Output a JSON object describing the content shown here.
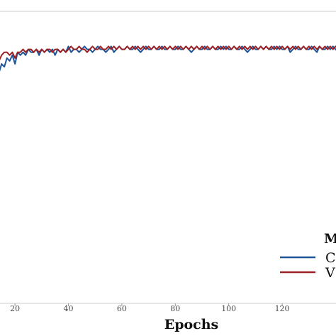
{
  "chart_data": {
    "type": "line",
    "xlabel": "Epochs",
    "ylabel": "",
    "xlim": [
      12,
      142
    ],
    "ylim": [
      0,
      1
    ],
    "grid": false,
    "x_ticks": [
      20,
      40,
      60,
      80,
      100,
      120
    ],
    "x": [
      12,
      13,
      14,
      15,
      16,
      17,
      18,
      19,
      20,
      21,
      22,
      23,
      24,
      25,
      26,
      27,
      28,
      29,
      30,
      31,
      32,
      33,
      34,
      35,
      36,
      37,
      38,
      39,
      40,
      41,
      42,
      43,
      44,
      45,
      46,
      47,
      48,
      49,
      50,
      51,
      52,
      53,
      54,
      55,
      56,
      57,
      58,
      59,
      60,
      61,
      62,
      63,
      64,
      65,
      66,
      67,
      68,
      69,
      70,
      71,
      72,
      73,
      74,
      75,
      76,
      77,
      78,
      79,
      80,
      81,
      82,
      83,
      84,
      85,
      86,
      87,
      88,
      89,
      90,
      91,
      92,
      93,
      94,
      95,
      96,
      97,
      98,
      99,
      100,
      101,
      102,
      103,
      104,
      105,
      106,
      107,
      108,
      109,
      110,
      111,
      112,
      113,
      114,
      115,
      116,
      117,
      118,
      119,
      120,
      121,
      122,
      123,
      124,
      125,
      126,
      127,
      128,
      129,
      130,
      131,
      132,
      133,
      134,
      135,
      136,
      137,
      138,
      139,
      140,
      141,
      142
    ],
    "series": [
      {
        "name": "C",
        "color": "#1f5596",
        "values": [
          0.78,
          0.8,
          0.79,
          0.82,
          0.81,
          0.84,
          0.83,
          0.85,
          0.82,
          0.86,
          0.85,
          0.86,
          0.85,
          0.87,
          0.86,
          0.86,
          0.87,
          0.85,
          0.87,
          0.86,
          0.87,
          0.86,
          0.87,
          0.85,
          0.87,
          0.86,
          0.87,
          0.86,
          0.88,
          0.86,
          0.87,
          0.87,
          0.86,
          0.87,
          0.88,
          0.87,
          0.87,
          0.86,
          0.87,
          0.88,
          0.87,
          0.87,
          0.86,
          0.87,
          0.88,
          0.86,
          0.87,
          0.88,
          0.87,
          0.87,
          0.88,
          0.87,
          0.87,
          0.88,
          0.87,
          0.86,
          0.87,
          0.88,
          0.87,
          0.87,
          0.88,
          0.87,
          0.87,
          0.88,
          0.87,
          0.87,
          0.88,
          0.87,
          0.87,
          0.88,
          0.87,
          0.87,
          0.88,
          0.87,
          0.86,
          0.87,
          0.88,
          0.87,
          0.87,
          0.88,
          0.87,
          0.87,
          0.88,
          0.87,
          0.87,
          0.88,
          0.87,
          0.88,
          0.87,
          0.87,
          0.88,
          0.87,
          0.87,
          0.88,
          0.87,
          0.86,
          0.87,
          0.88,
          0.87,
          0.87,
          0.88,
          0.87,
          0.88,
          0.87,
          0.87,
          0.88,
          0.87,
          0.88,
          0.87,
          0.87,
          0.88,
          0.86,
          0.87,
          0.88,
          0.87,
          0.87,
          0.88,
          0.87,
          0.87,
          0.88,
          0.87,
          0.86,
          0.88,
          0.87,
          0.87,
          0.88,
          0.87,
          0.88,
          0.87,
          0.86,
          0.87
        ]
      },
      {
        "name": "V",
        "color": "#9b2226",
        "values": [
          0.8,
          0.81,
          0.83,
          0.85,
          0.86,
          0.86,
          0.85,
          0.86,
          0.84,
          0.86,
          0.86,
          0.87,
          0.86,
          0.87,
          0.87,
          0.86,
          0.87,
          0.86,
          0.87,
          0.86,
          0.87,
          0.87,
          0.86,
          0.87,
          0.87,
          0.86,
          0.87,
          0.86,
          0.87,
          0.88,
          0.87,
          0.87,
          0.88,
          0.87,
          0.87,
          0.86,
          0.87,
          0.88,
          0.87,
          0.87,
          0.88,
          0.87,
          0.87,
          0.88,
          0.87,
          0.88,
          0.87,
          0.88,
          0.87,
          0.87,
          0.88,
          0.87,
          0.88,
          0.87,
          0.88,
          0.87,
          0.88,
          0.87,
          0.88,
          0.87,
          0.88,
          0.87,
          0.88,
          0.87,
          0.88,
          0.87,
          0.88,
          0.87,
          0.88,
          0.87,
          0.88,
          0.87,
          0.88,
          0.87,
          0.88,
          0.87,
          0.88,
          0.87,
          0.88,
          0.87,
          0.88,
          0.87,
          0.88,
          0.87,
          0.88,
          0.87,
          0.88,
          0.87,
          0.88,
          0.87,
          0.88,
          0.87,
          0.88,
          0.87,
          0.88,
          0.87,
          0.88,
          0.87,
          0.88,
          0.87,
          0.88,
          0.87,
          0.88,
          0.87,
          0.88,
          0.87,
          0.88,
          0.87,
          0.88,
          0.87,
          0.88,
          0.87,
          0.88,
          0.87,
          0.88,
          0.87,
          0.88,
          0.87,
          0.88,
          0.87,
          0.88,
          0.87,
          0.88,
          0.87,
          0.88,
          0.87,
          0.88,
          0.87,
          0.88,
          0.87,
          0.88
        ]
      }
    ],
    "legend": {
      "title": "M",
      "position": "bottom-right"
    }
  }
}
